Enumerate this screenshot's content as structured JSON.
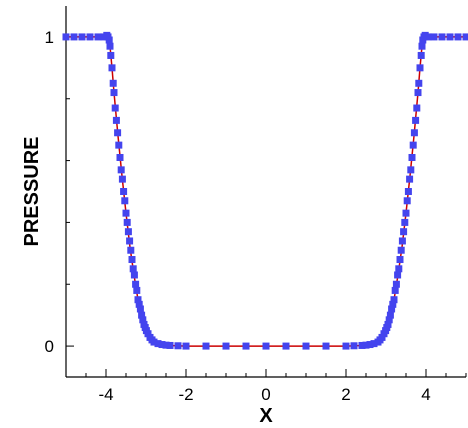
{
  "chart_data": {
    "type": "line",
    "title": "",
    "xlabel": "X",
    "ylabel": "PRESSURE",
    "xlim": [
      -5,
      5
    ],
    "ylim": [
      -0.1,
      1.1
    ],
    "x_ticks": [
      -4,
      -2,
      0,
      2,
      4
    ],
    "x_tick_labels": [
      "-4",
      "-2",
      "0",
      "2",
      "4"
    ],
    "y_ticks": [
      0,
      1
    ],
    "y_tick_labels": [
      "0",
      "1"
    ],
    "grid": false,
    "legend": "none",
    "series": [
      {
        "style": "line",
        "color": "#cc0000",
        "x": [
          -5.0,
          -4.2,
          -3.95,
          -3.9,
          -3.85,
          -3.8,
          -3.7,
          -3.6,
          -3.5,
          -3.4,
          -3.3,
          -3.2,
          -3.1,
          -3.0,
          -2.9,
          -2.8,
          -2.6,
          -2.4,
          -2.0,
          -1.0,
          0.0,
          1.0,
          2.0,
          2.4,
          2.6,
          2.8,
          2.9,
          3.0,
          3.1,
          3.2,
          3.3,
          3.4,
          3.5,
          3.6,
          3.7,
          3.8,
          3.85,
          3.9,
          3.95,
          4.2,
          5.0
        ],
        "values": [
          1.0,
          1.0,
          1.0,
          0.97,
          0.9,
          0.82,
          0.68,
          0.55,
          0.43,
          0.32,
          0.23,
          0.15,
          0.09,
          0.05,
          0.025,
          0.013,
          0.005,
          0.002,
          0.0,
          0.0,
          0.0,
          0.0,
          0.0,
          0.002,
          0.005,
          0.013,
          0.025,
          0.05,
          0.09,
          0.15,
          0.23,
          0.32,
          0.43,
          0.55,
          0.68,
          0.82,
          0.9,
          0.97,
          1.0,
          1.0,
          1.0
        ]
      },
      {
        "style": "markers",
        "marker": "square",
        "color": "#4444ee",
        "x": [
          -5.0,
          -4.8,
          -4.6,
          -4.4,
          -4.2,
          -4.05,
          -3.98,
          -3.95,
          -3.92,
          -3.9,
          -3.88,
          -3.85,
          -3.82,
          -3.8,
          -3.77,
          -3.74,
          -3.71,
          -3.68,
          -3.65,
          -3.62,
          -3.59,
          -3.56,
          -3.53,
          -3.5,
          -3.47,
          -3.44,
          -3.41,
          -3.38,
          -3.35,
          -3.32,
          -3.29,
          -3.26,
          -3.23,
          -3.2,
          -3.17,
          -3.14,
          -3.11,
          -3.08,
          -3.05,
          -3.02,
          -2.99,
          -2.95,
          -2.9,
          -2.85,
          -2.8,
          -2.7,
          -2.6,
          -2.5,
          -2.4,
          -2.2,
          -2.0,
          -1.5,
          -1.0,
          -0.5,
          0.0,
          0.5,
          1.0,
          1.5,
          2.0,
          2.2,
          2.4,
          2.5,
          2.6,
          2.7,
          2.8,
          2.85,
          2.9,
          2.95,
          2.99,
          3.02,
          3.05,
          3.08,
          3.11,
          3.14,
          3.17,
          3.2,
          3.23,
          3.26,
          3.29,
          3.32,
          3.35,
          3.38,
          3.41,
          3.44,
          3.47,
          3.5,
          3.53,
          3.56,
          3.59,
          3.62,
          3.65,
          3.68,
          3.71,
          3.74,
          3.77,
          3.8,
          3.82,
          3.85,
          3.88,
          3.9,
          3.92,
          3.95,
          3.98,
          4.05,
          4.2,
          4.4,
          4.6,
          4.8,
          5.0
        ],
        "values": [
          1.0,
          1.0,
          1.0,
          1.0,
          1.0,
          1.0,
          1.005,
          1.0,
          0.99,
          0.97,
          0.94,
          0.9,
          0.85,
          0.82,
          0.77,
          0.73,
          0.69,
          0.65,
          0.61,
          0.57,
          0.54,
          0.5,
          0.47,
          0.43,
          0.4,
          0.37,
          0.34,
          0.31,
          0.28,
          0.25,
          0.23,
          0.2,
          0.18,
          0.15,
          0.135,
          0.12,
          0.1,
          0.085,
          0.07,
          0.06,
          0.05,
          0.04,
          0.028,
          0.02,
          0.013,
          0.008,
          0.005,
          0.003,
          0.002,
          0.001,
          0.0,
          0.0,
          0.0,
          0.0,
          0.0,
          0.0,
          0.0,
          0.0,
          0.0,
          0.001,
          0.002,
          0.003,
          0.005,
          0.008,
          0.013,
          0.02,
          0.028,
          0.04,
          0.05,
          0.06,
          0.07,
          0.085,
          0.1,
          0.12,
          0.135,
          0.15,
          0.18,
          0.2,
          0.23,
          0.25,
          0.28,
          0.31,
          0.34,
          0.37,
          0.4,
          0.43,
          0.47,
          0.5,
          0.54,
          0.57,
          0.61,
          0.65,
          0.69,
          0.73,
          0.77,
          0.82,
          0.85,
          0.9,
          0.94,
          0.97,
          0.99,
          1.0,
          1.005,
          1.0,
          1.0,
          1.0,
          1.0,
          1.0,
          1.0
        ]
      }
    ]
  }
}
